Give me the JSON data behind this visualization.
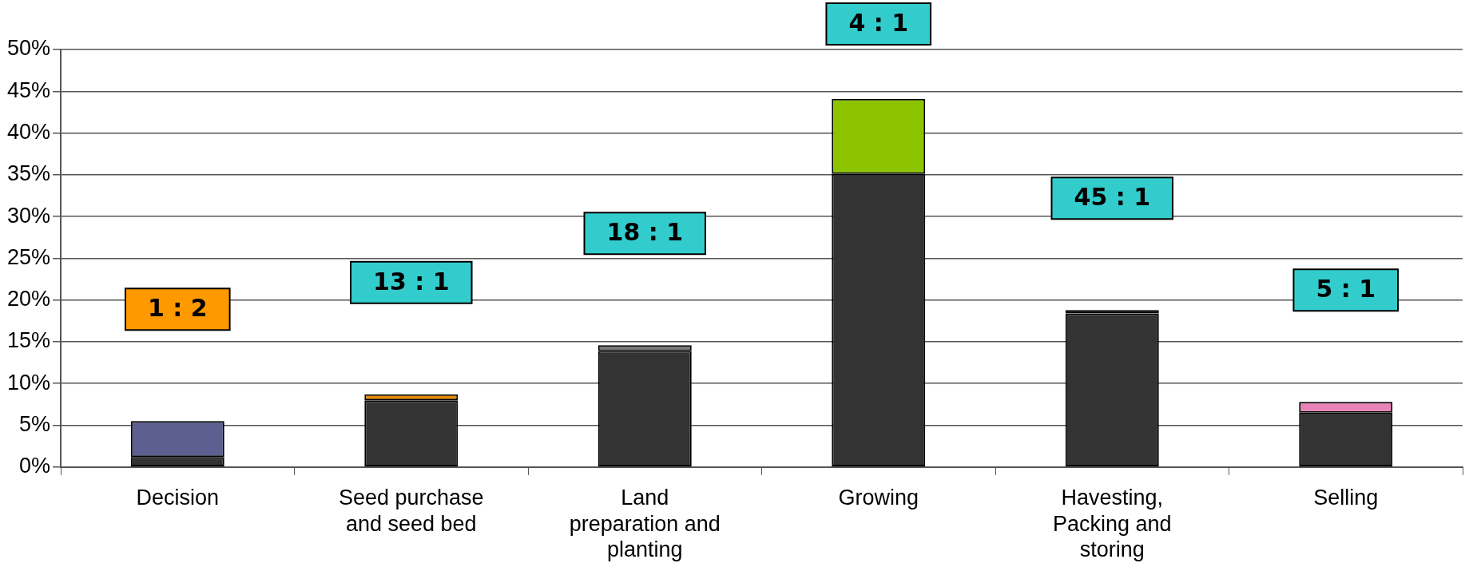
{
  "chart_data": {
    "type": "bar",
    "stacked": true,
    "categories": [
      "Decision",
      "Seed purchase and seed bed",
      "Land preparation and planting",
      "Growing",
      "Havesting, Packing and storing",
      "Selling"
    ],
    "series": [
      {
        "color": "#333333",
        "values": [
          1.2,
          8.0,
          13.9,
          35.1,
          18.4,
          6.5
        ]
      },
      {
        "colors": [
          "#5c5f8f",
          "#e88a00",
          "#777777",
          "#8cc400",
          "#1a1a1a",
          "#e883b8"
        ],
        "values": [
          4.3,
          0.7,
          0.7,
          9.0,
          0.4,
          1.3
        ]
      }
    ],
    "ylim": [
      0,
      50
    ],
    "yticks": [
      {
        "value": 0,
        "label": "0%"
      },
      {
        "value": 5,
        "label": "5%"
      },
      {
        "value": 10,
        "label": "10%"
      },
      {
        "value": 15,
        "label": "15%"
      },
      {
        "value": 20,
        "label": "20%"
      },
      {
        "value": 25,
        "label": "25%"
      },
      {
        "value": 30,
        "label": "30%"
      },
      {
        "value": 35,
        "label": "35%"
      },
      {
        "value": 40,
        "label": "40%"
      },
      {
        "value": 45,
        "label": "45%"
      },
      {
        "value": 50,
        "label": "50%"
      }
    ],
    "grid": "y",
    "legend": false,
    "annotations": [
      "1 : 2",
      "13 : 1",
      "18 : 1",
      "4 : 1",
      "45 : 1",
      "5 : 1"
    ]
  }
}
